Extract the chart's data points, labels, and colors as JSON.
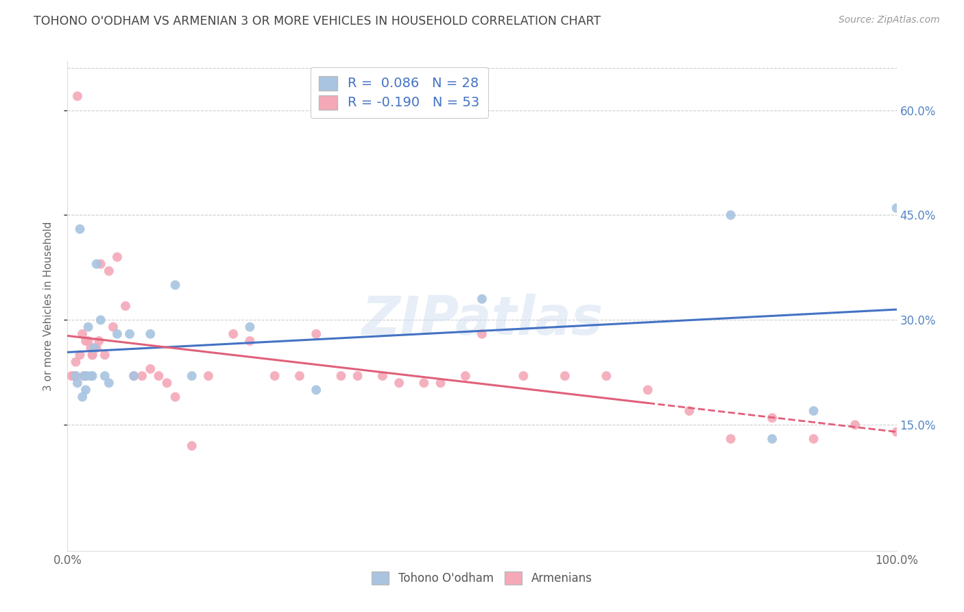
{
  "title": "TOHONO O'ODHAM VS ARMENIAN 3 OR MORE VEHICLES IN HOUSEHOLD CORRELATION CHART",
  "source": "Source: ZipAtlas.com",
  "ylabel": "3 or more Vehicles in Household",
  "watermark": "ZIPatlas",
  "xlim": [
    0.0,
    100.0
  ],
  "ylim": [
    -3.0,
    67.0
  ],
  "yticks": [
    15.0,
    30.0,
    45.0,
    60.0
  ],
  "xticks": [
    0.0,
    10.0,
    20.0,
    30.0,
    40.0,
    50.0,
    60.0,
    70.0,
    80.0,
    90.0,
    100.0
  ],
  "blue_label": "Tohono O'odham",
  "pink_label": "Armenians",
  "blue_R": 0.086,
  "blue_N": 28,
  "pink_R": -0.19,
  "pink_N": 53,
  "blue_color": "#a8c4e0",
  "pink_color": "#f4a8b8",
  "blue_line_color": "#4472c4",
  "pink_line_color": "#e0607a",
  "background_color": "#ffffff",
  "grid_color": "#cccccc",
  "title_color": "#444444",
  "blue_x": [
    1.0,
    1.5,
    2.0,
    2.2,
    2.5,
    2.8,
    3.0,
    3.5,
    4.0,
    5.0,
    6.0,
    7.5,
    10.0,
    13.0,
    22.0,
    50.0,
    80.0,
    85.0,
    90.0,
    100.0,
    1.2,
    1.8,
    2.3,
    3.2,
    4.5,
    8.0,
    15.0,
    30.0
  ],
  "blue_y": [
    22.0,
    43.0,
    22.0,
    20.0,
    29.0,
    22.0,
    22.0,
    38.0,
    30.0,
    21.0,
    28.0,
    28.0,
    28.0,
    35.0,
    29.0,
    33.0,
    45.0,
    13.0,
    17.0,
    46.0,
    21.0,
    19.0,
    22.0,
    26.0,
    22.0,
    22.0,
    22.0,
    20.0
  ],
  "pink_x": [
    0.5,
    0.8,
    1.0,
    1.2,
    1.5,
    1.8,
    2.0,
    2.2,
    2.5,
    2.8,
    3.0,
    3.2,
    3.5,
    3.8,
    4.0,
    4.5,
    5.0,
    5.5,
    6.0,
    7.0,
    8.0,
    9.0,
    10.0,
    11.0,
    12.0,
    13.0,
    15.0,
    17.0,
    20.0,
    22.0,
    25.0,
    28.0,
    30.0,
    33.0,
    35.0,
    38.0,
    40.0,
    43.0,
    45.0,
    48.0,
    50.0,
    55.0,
    60.0,
    65.0,
    70.0,
    75.0,
    80.0,
    85.0,
    90.0,
    95.0,
    100.0,
    1.0,
    3.0
  ],
  "pink_y": [
    22.0,
    22.0,
    24.0,
    62.0,
    25.0,
    28.0,
    22.0,
    27.0,
    27.0,
    26.0,
    25.0,
    26.0,
    26.0,
    27.0,
    38.0,
    25.0,
    37.0,
    29.0,
    39.0,
    32.0,
    22.0,
    22.0,
    23.0,
    22.0,
    21.0,
    19.0,
    12.0,
    22.0,
    28.0,
    27.0,
    22.0,
    22.0,
    28.0,
    22.0,
    22.0,
    22.0,
    21.0,
    21.0,
    21.0,
    22.0,
    28.0,
    22.0,
    22.0,
    22.0,
    20.0,
    17.0,
    13.0,
    16.0,
    13.0,
    15.0,
    14.0,
    22.0,
    25.0
  ]
}
